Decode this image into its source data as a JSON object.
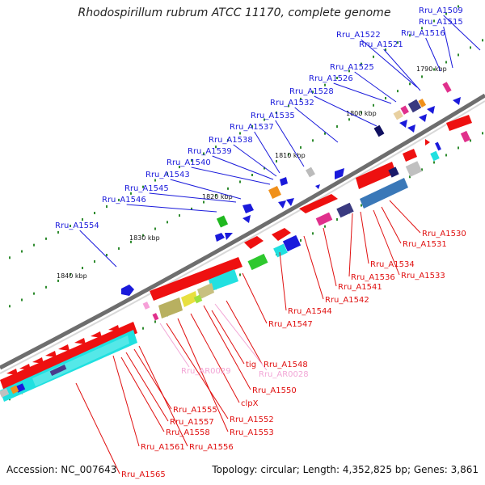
{
  "title": "Rhodospirillum rubrum ATCC 11170, complete genome",
  "footer": {
    "accession": "Accession: NC_007643",
    "stats": "Topology: circular; Length: 4,352,825 bp; Genes: 3,861"
  },
  "colors": {
    "forward_label": "#1a1adb",
    "reverse_label": "#e01010",
    "rna_label": "#f2a6d6",
    "backbone": "#777777",
    "dots": "#2e8b2e"
  },
  "scale_ticks": [
    "1790 kbp",
    "1800 kbp",
    "1810 kbp",
    "1820 kbp",
    "1830 kbp",
    "1840 kbp"
  ],
  "forward_labels": [
    "Rru_A1509",
    "Rru_A1515",
    "Rru_A1516",
    "Rru_A1522",
    "Rru_A1521",
    "Rru_A1525",
    "Rru_A1526",
    "Rru_A1528",
    "Rru_A1532",
    "Rru_A1535",
    "Rru_A1537",
    "Rru_A1538",
    "Rru_A1539",
    "Rru_A1540",
    "Rru_A1543",
    "Rru_A1545",
    "Rru_A1546",
    "Rru_A1554"
  ],
  "reverse_labels": [
    "Rru_A1530",
    "Rru_A1531",
    "Rru_A1534",
    "Rru_A1536",
    "Rru_A1533",
    "Rru_A1541",
    "Rru_A1542",
    "Rru_A1544",
    "Rru_A1547",
    "Rru_A1548",
    "tig",
    "Rru_A1550",
    "clpX",
    "Rru_A1552",
    "Rru_A1555",
    "Rru_A1553",
    "Rru_A1557",
    "Rru_A1558",
    "Rru_A1556",
    "Rru_A1561",
    "Rru_A1565"
  ],
  "rna_labels": [
    "Rru_AR0029",
    "Rru_AR0028"
  ]
}
